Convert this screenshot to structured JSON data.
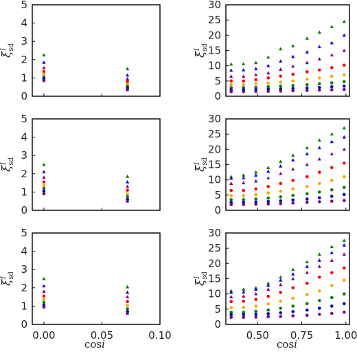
{
  "figure": {
    "xlabel_text": "cos",
    "xlabel_var": "i",
    "ylabel_main": "ξ",
    "ylabel_sub": "sd",
    "ylabel_sup": "I"
  },
  "colors": {
    "green": "#008000",
    "blue": "#0000ff",
    "purple": "#800080",
    "red": "#ff0000",
    "orange": "#ffa500",
    "darkgreen": "#008000",
    "navy": "#0000cd",
    "violet": "#800080"
  },
  "chart_data": [
    {
      "type": "scatter",
      "panel": "row1-left",
      "xlim": [
        -0.01,
        0.1
      ],
      "ylim": [
        0,
        5
      ],
      "xticks": [
        0.0,
        0.05,
        0.1
      ],
      "xticklabels": [],
      "yticks": [
        0,
        1,
        2,
        3,
        4,
        5
      ],
      "yticklabels": [
        "0",
        "1",
        "2",
        "3",
        "4",
        "5"
      ],
      "x": [
        0.0,
        0.072
      ],
      "series": [
        {
          "color": "green",
          "marker": "triangle",
          "values": [
            2.25,
            1.5
          ]
        },
        {
          "color": "blue",
          "marker": "triangle",
          "values": [
            1.85,
            1.15
          ]
        },
        {
          "color": "purple",
          "marker": "triangle",
          "values": [
            1.55,
            0.95
          ]
        },
        {
          "color": "red",
          "marker": "circle",
          "values": [
            1.35,
            0.8
          ]
        },
        {
          "color": "orange",
          "marker": "circle",
          "values": [
            1.2,
            0.65
          ]
        },
        {
          "color": "darkgreen",
          "marker": "circle",
          "values": [
            1.05,
            0.55
          ]
        },
        {
          "color": "navy",
          "marker": "circle",
          "values": [
            0.95,
            0.45
          ]
        },
        {
          "color": "violet",
          "marker": "circle",
          "values": [
            0.85,
            0.35
          ]
        }
      ]
    },
    {
      "type": "scatter",
      "panel": "row1-right",
      "xlim": [
        0.32,
        1.02
      ],
      "ylim": [
        0,
        30
      ],
      "xticks": [
        0.5,
        0.75,
        1.0
      ],
      "xticklabels": [],
      "yticks": [
        0,
        5,
        10,
        15,
        20,
        25,
        30
      ],
      "yticklabels": [
        "0",
        "5",
        "10",
        "15",
        "20",
        "25",
        "30"
      ],
      "x": [
        0.35,
        0.42,
        0.49,
        0.56,
        0.63,
        0.7,
        0.78,
        0.85,
        0.92,
        0.99
      ],
      "series": [
        {
          "color": "green",
          "marker": "triangle",
          "values": [
            10.5,
            10.6,
            11.0,
            12.8,
            15.5,
            16.5,
            19.0,
            21.0,
            22.8,
            24.5
          ]
        },
        {
          "color": "blue",
          "marker": "triangle",
          "values": [
            8.5,
            8.6,
            9.0,
            10.0,
            11.5,
            13.0,
            14.5,
            16.2,
            17.5,
            20.0
          ]
        },
        {
          "color": "purple",
          "marker": "triangle",
          "values": [
            6.5,
            6.5,
            7.0,
            7.6,
            8.8,
            9.8,
            11.0,
            12.2,
            13.5,
            15.0
          ]
        },
        {
          "color": "red",
          "marker": "circle",
          "values": [
            5.0,
            5.0,
            5.4,
            6.0,
            6.6,
            7.2,
            8.0,
            8.6,
            9.4,
            10.2
          ]
        },
        {
          "color": "orange",
          "marker": "circle",
          "values": [
            3.8,
            3.8,
            4.0,
            4.3,
            4.6,
            5.0,
            5.6,
            6.0,
            6.5,
            7.0
          ]
        },
        {
          "color": "darkgreen",
          "marker": "circle",
          "values": [
            2.8,
            2.8,
            2.9,
            3.1,
            3.3,
            3.5,
            3.8,
            4.1,
            4.4,
            4.8
          ]
        },
        {
          "color": "navy",
          "marker": "circle",
          "values": [
            2.1,
            2.1,
            2.2,
            2.3,
            2.4,
            2.5,
            2.7,
            2.9,
            3.1,
            3.3
          ]
        },
        {
          "color": "violet",
          "marker": "circle",
          "values": [
            1.5,
            1.5,
            1.6,
            1.6,
            1.7,
            1.8,
            1.9,
            2.0,
            2.1,
            2.2
          ]
        }
      ]
    },
    {
      "type": "scatter",
      "panel": "row2-left",
      "xlim": [
        -0.01,
        0.1
      ],
      "ylim": [
        0,
        5
      ],
      "xticks": [
        0.0,
        0.05,
        0.1
      ],
      "xticklabels": [],
      "yticks": [
        0,
        1,
        2,
        3,
        4,
        5
      ],
      "yticklabels": [
        "0",
        "1",
        "2",
        "3",
        "4",
        "5"
      ],
      "x": [
        0.0,
        0.072
      ],
      "series": [
        {
          "color": "green",
          "marker": "triangle",
          "values": [
            2.5,
            1.85
          ]
        },
        {
          "color": "blue",
          "marker": "triangle",
          "values": [
            2.1,
            1.55
          ]
        },
        {
          "color": "purple",
          "marker": "triangle",
          "values": [
            1.8,
            1.3
          ]
        },
        {
          "color": "red",
          "marker": "circle",
          "values": [
            1.55,
            1.1
          ]
        },
        {
          "color": "orange",
          "marker": "circle",
          "values": [
            1.35,
            0.9
          ]
        },
        {
          "color": "darkgreen",
          "marker": "circle",
          "values": [
            1.2,
            0.75
          ]
        },
        {
          "color": "navy",
          "marker": "circle",
          "values": [
            1.05,
            0.6
          ]
        },
        {
          "color": "violet",
          "marker": "circle",
          "values": [
            0.9,
            0.5
          ]
        }
      ]
    },
    {
      "type": "scatter",
      "panel": "row2-right",
      "xlim": [
        0.32,
        1.02
      ],
      "ylim": [
        0,
        30
      ],
      "xticks": [
        0.5,
        0.75,
        1.0
      ],
      "xticklabels": [],
      "yticks": [
        0,
        5,
        10,
        15,
        20,
        25,
        30
      ],
      "yticklabels": [
        "0",
        "5",
        "10",
        "15",
        "20",
        "25",
        "30"
      ],
      "x": [
        0.35,
        0.42,
        0.49,
        0.56,
        0.63,
        0.7,
        0.78,
        0.85,
        0.92,
        0.99
      ],
      "series": [
        {
          "color": "green",
          "marker": "triangle",
          "values": [
            11.0,
            11.5,
            12.5,
            14.0,
            16.0,
            18.0,
            20.5,
            23.0,
            25.0,
            27.0
          ]
        },
        {
          "color": "blue",
          "marker": "triangle",
          "values": [
            10.5,
            10.6,
            11.5,
            12.8,
            14.5,
            16.5,
            18.5,
            20.5,
            22.5,
            24.0
          ]
        },
        {
          "color": "purple",
          "marker": "triangle",
          "values": [
            8.8,
            9.0,
            9.6,
            10.6,
            12.0,
            13.5,
            15.0,
            16.8,
            18.5,
            20.0
          ]
        },
        {
          "color": "red",
          "marker": "circle",
          "values": [
            6.5,
            6.5,
            7.0,
            7.8,
            8.8,
            9.8,
            11.0,
            12.5,
            14.0,
            15.5
          ]
        },
        {
          "color": "orange",
          "marker": "circle",
          "values": [
            4.8,
            4.8,
            5.2,
            5.7,
            6.3,
            7.0,
            7.8,
            8.8,
            9.8,
            11.0
          ]
        },
        {
          "color": "darkgreen",
          "marker": "circle",
          "values": [
            3.5,
            3.5,
            3.7,
            4.0,
            4.4,
            4.9,
            5.4,
            6.0,
            6.7,
            7.5
          ]
        },
        {
          "color": "navy",
          "marker": "circle",
          "values": [
            2.6,
            2.6,
            2.7,
            2.9,
            3.1,
            3.4,
            3.7,
            4.1,
            4.6,
            5.2
          ]
        },
        {
          "color": "violet",
          "marker": "circle",
          "values": [
            1.9,
            1.9,
            2.0,
            2.1,
            2.2,
            2.4,
            2.6,
            2.8,
            3.0,
            3.2
          ]
        }
      ]
    },
    {
      "type": "scatter",
      "panel": "row3-left",
      "xlim": [
        -0.01,
        0.1
      ],
      "ylim": [
        0,
        5
      ],
      "xticks": [
        0.0,
        0.05,
        0.1
      ],
      "xticklabels": [
        "0.00",
        "0.05",
        "0.10"
      ],
      "yticks": [
        0,
        1,
        2,
        3,
        4,
        5
      ],
      "yticklabels": [
        "0",
        "1",
        "2",
        "3",
        "4",
        "5"
      ],
      "x": [
        0.0,
        0.072
      ],
      "series": [
        {
          "color": "green",
          "marker": "triangle",
          "values": [
            2.5,
            2.05
          ]
        },
        {
          "color": "blue",
          "marker": "triangle",
          "values": [
            2.1,
            1.75
          ]
        },
        {
          "color": "purple",
          "marker": "triangle",
          "values": [
            1.8,
            1.5
          ]
        },
        {
          "color": "red",
          "marker": "circle",
          "values": [
            1.55,
            1.25
          ]
        },
        {
          "color": "orange",
          "marker": "circle",
          "values": [
            1.35,
            1.05
          ]
        },
        {
          "color": "darkgreen",
          "marker": "circle",
          "values": [
            1.2,
            0.85
          ]
        },
        {
          "color": "navy",
          "marker": "circle",
          "values": [
            1.05,
            0.7
          ]
        },
        {
          "color": "violet",
          "marker": "circle",
          "values": [
            0.95,
            0.6
          ]
        }
      ]
    },
    {
      "type": "scatter",
      "panel": "row3-right",
      "xlim": [
        0.32,
        1.02
      ],
      "ylim": [
        0,
        30
      ],
      "xticks": [
        0.5,
        0.75,
        1.0
      ],
      "xticklabels": [
        "0.50",
        "0.75",
        "1.00"
      ],
      "yticks": [
        0,
        5,
        10,
        15,
        20,
        25,
        30
      ],
      "yticklabels": [
        "0",
        "5",
        "10",
        "15",
        "20",
        "25",
        "30"
      ],
      "x": [
        0.35,
        0.42,
        0.49,
        0.56,
        0.63,
        0.7,
        0.78,
        0.85,
        0.92,
        0.99
      ],
      "series": [
        {
          "color": "green",
          "marker": "triangle",
          "values": [
            11.0,
            11.5,
            12.0,
            13.5,
            15.5,
            18.0,
            20.5,
            23.0,
            25.5,
            27.5
          ]
        },
        {
          "color": "blue",
          "marker": "triangle",
          "values": [
            10.5,
            10.6,
            11.5,
            12.8,
            14.5,
            16.5,
            19.0,
            21.0,
            23.5,
            26.0
          ]
        },
        {
          "color": "purple",
          "marker": "triangle",
          "values": [
            9.0,
            9.2,
            10.0,
            11.5,
            13.0,
            15.0,
            17.0,
            19.0,
            21.0,
            23.0
          ]
        },
        {
          "color": "red",
          "marker": "circle",
          "values": [
            7.5,
            7.6,
            8.2,
            9.2,
            10.5,
            12.0,
            13.5,
            15.5,
            17.0,
            18.5
          ]
        },
        {
          "color": "orange",
          "marker": "circle",
          "values": [
            5.5,
            5.6,
            6.0,
            6.7,
            7.6,
            8.6,
            9.8,
            11.0,
            12.8,
            14.5
          ]
        },
        {
          "color": "darkgreen",
          "marker": "circle",
          "values": [
            4.0,
            4.0,
            4.3,
            4.7,
            5.3,
            6.0,
            6.8,
            7.8,
            8.8,
            10.0
          ]
        },
        {
          "color": "navy",
          "marker": "circle",
          "values": [
            3.2,
            3.2,
            3.3,
            3.5,
            3.8,
            4.2,
            4.7,
            5.3,
            6.0,
            6.8
          ]
        },
        {
          "color": "violet",
          "marker": "circle",
          "values": [
            2.3,
            2.3,
            2.4,
            2.5,
            2.6,
            2.8,
            3.0,
            3.3,
            3.6,
            4.0
          ]
        }
      ]
    }
  ]
}
